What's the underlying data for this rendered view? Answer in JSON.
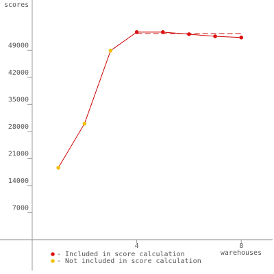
{
  "chart_data": {
    "type": "line",
    "y_label": "scores",
    "x_label": "warehouses",
    "x": [
      1,
      2,
      3,
      4,
      5,
      6,
      7,
      8
    ],
    "values": [
      18600,
      30000,
      48900,
      53700,
      53700,
      53150,
      52600,
      52300
    ],
    "included": [
      false,
      false,
      false,
      true,
      true,
      true,
      true,
      true
    ],
    "line_color": "#cc0000",
    "legend": [
      {
        "name": "- Included in score calculation",
        "color": "#dd1111"
      },
      {
        "name": "- Not included in score calculation",
        "color": "#f0c000"
      }
    ],
    "score": 53300,
    "score_x": [
      4,
      8
    ],
    "xlim": [
      0,
      9.2
    ],
    "xticks": [
      4,
      8
    ],
    "ylim": [
      -8000,
      62000
    ],
    "yticks": [
      7000,
      14000,
      21000,
      28000,
      35000,
      42000,
      49000
    ]
  }
}
